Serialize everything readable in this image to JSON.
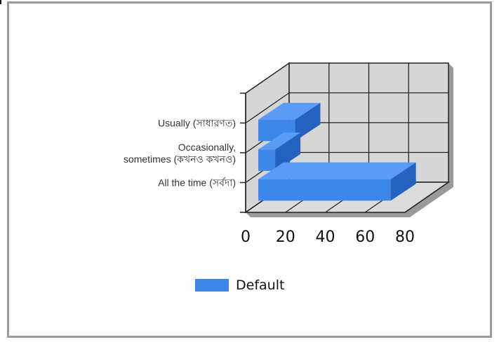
{
  "chart_data": {
    "type": "bar",
    "orientation": "horizontal",
    "style": "3d",
    "categories": [
      "All the time (সর্বদা)",
      "Occasionally,\nsometimes (কখনও কখনও)",
      "Usually (সাধারণত)"
    ],
    "series": [
      {
        "name": "Default",
        "values": [
          70,
          12,
          22
        ]
      }
    ],
    "xlim": [
      0,
      80
    ],
    "xticks": [
      "0",
      "20",
      "40",
      "60",
      "80"
    ],
    "grid": true,
    "legend_position": "bottom",
    "colors": {
      "bar_front": "#3d86ea",
      "bar_top": "#5a9cf5",
      "bar_side": "#2462c2",
      "wall": "#d6d6d6",
      "floor": "#dcdcdc",
      "shadow": "#9a9a9a"
    }
  }
}
